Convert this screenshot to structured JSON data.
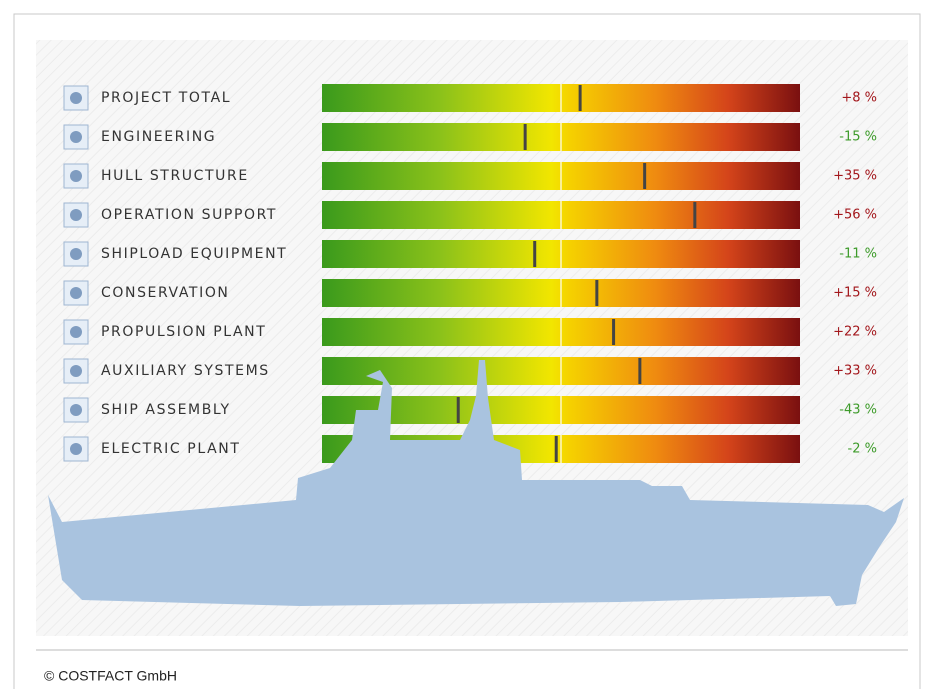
{
  "chart_data": {
    "type": "gauge",
    "categories": [
      "PROJECT TOTAL",
      "ENGINEERING",
      "HULL STRUCTURE",
      "OPERATION SUPPORT",
      "SHIPLOAD EQUIPMENT",
      "CONSERVATION",
      "PROPULSION PLANT",
      "AUXILIARY SYSTEMS",
      "SHIP ASSEMBLY",
      "ELECTRIC PLANT"
    ],
    "values": [
      8,
      -15,
      35,
      56,
      -11,
      15,
      22,
      33,
      -43,
      -2
    ],
    "value_labels": [
      "+8 %",
      "-15 %",
      "+35 %",
      "+56 %",
      "-11 %",
      "+15 %",
      "+22 %",
      "+33 %",
      "-43 %",
      "-2 %"
    ],
    "xlim": [
      -100,
      100
    ],
    "positive_color": "#a3171c",
    "negative_color": "#3d9b2a",
    "marker_color": "#444444",
    "footer": "© COSTFACT GmbH"
  }
}
